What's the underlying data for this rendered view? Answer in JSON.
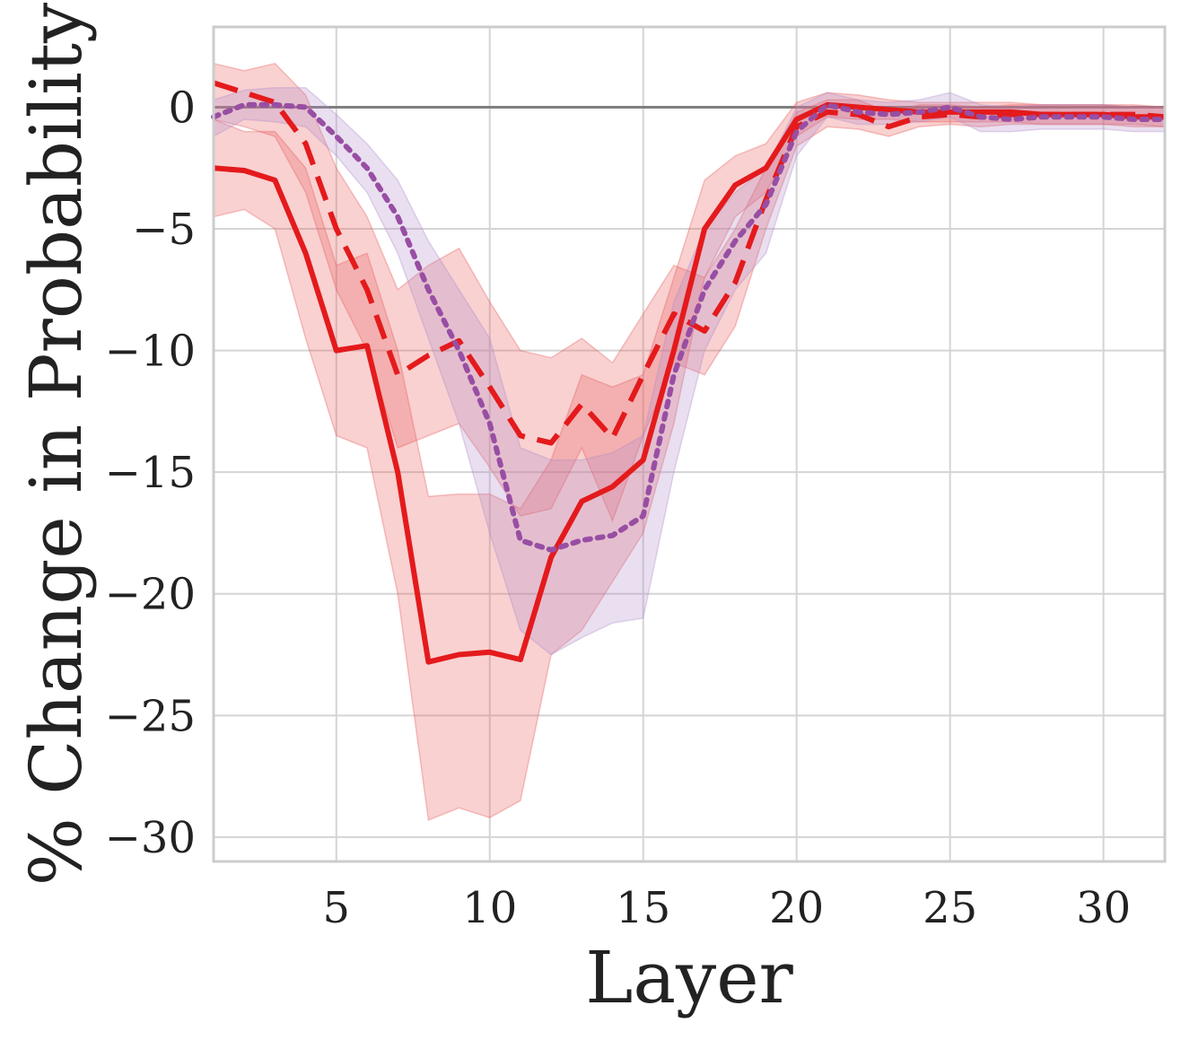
{
  "chart_data": {
    "type": "line",
    "title": "",
    "xlabel": "Layer",
    "ylabel": "% Change in Probability",
    "xlim": [
      1,
      32
    ],
    "ylim": [
      -31,
      3.3
    ],
    "xticks": [
      5,
      10,
      15,
      20,
      25,
      30
    ],
    "yticks": [
      0,
      -5,
      -10,
      -15,
      -20,
      -25,
      -30
    ],
    "xtick_labels": [
      "5",
      "10",
      "15",
      "20",
      "25",
      "30"
    ],
    "ytick_labels": [
      "0",
      "−5",
      "−10",
      "−15",
      "−20",
      "−25",
      "−30"
    ],
    "grid": true,
    "reference_line": 0,
    "colors": {
      "grid": "#d4d4d4",
      "frame": "#cccccc",
      "reference": "#7f7f7f",
      "red": "#e41a1c",
      "purple": "#984ea3",
      "band_red": "#e8585a",
      "band_purple": "#b08cc9",
      "text": "#222222"
    },
    "series": [
      {
        "style": "solid",
        "color": "#e41a1c",
        "band_color": "#e8585a",
        "x": [
          1,
          2,
          3,
          4,
          5,
          6,
          7,
          8,
          9,
          10,
          11,
          12,
          13,
          14,
          15,
          16,
          17,
          18,
          19,
          20,
          21,
          22,
          23,
          24,
          25,
          26,
          27,
          28,
          29,
          30,
          31,
          32
        ],
        "y": [
          -2.5,
          -2.6,
          -3.0,
          -6.0,
          -10.0,
          -9.8,
          -15.0,
          -22.8,
          -22.5,
          -22.4,
          -22.7,
          -18.5,
          -16.2,
          -15.6,
          -14.5,
          -10.0,
          -5.0,
          -3.2,
          -2.5,
          -0.5,
          0.1,
          0.0,
          -0.1,
          -0.2,
          -0.2,
          -0.2,
          -0.2,
          -0.3,
          -0.3,
          -0.3,
          -0.4,
          -0.4
        ],
        "lower": [
          -4.5,
          -4.2,
          -5.0,
          -9.5,
          -13.5,
          -14.0,
          -20.0,
          -29.3,
          -28.8,
          -29.2,
          -28.5,
          -22.5,
          -21.5,
          -19.5,
          -17.5,
          -13.0,
          -7.0,
          -4.5,
          -3.5,
          -1.2,
          -0.4,
          -0.5,
          -0.5,
          -0.6,
          -0.6,
          -0.6,
          -0.6,
          -0.7,
          -0.7,
          -0.7,
          -0.8,
          -0.8
        ],
        "upper": [
          -0.5,
          -1.0,
          -1.0,
          -2.5,
          -6.5,
          -6.0,
          -10.0,
          -16.0,
          -15.9,
          -15.9,
          -16.5,
          -14.5,
          -11.0,
          -11.5,
          -11.0,
          -7.0,
          -3.0,
          -2.0,
          -1.5,
          0.2,
          0.6,
          0.5,
          0.3,
          0.2,
          0.2,
          0.2,
          0.2,
          0.1,
          0.1,
          0.1,
          0.0,
          0.0
        ]
      },
      {
        "style": "dashed",
        "color": "#e41a1c",
        "band_color": "#e8585a",
        "x": [
          1,
          2,
          3,
          4,
          5,
          6,
          7,
          8,
          9,
          10,
          11,
          12,
          13,
          14,
          15,
          16,
          17,
          18,
          19,
          20,
          21,
          22,
          23,
          24,
          25,
          26,
          27,
          28,
          29,
          30,
          31,
          32
        ],
        "y": [
          1.0,
          0.6,
          0.2,
          -1.5,
          -5.0,
          -7.5,
          -11.0,
          -10.2,
          -9.6,
          -11.5,
          -13.5,
          -13.8,
          -12.2,
          -13.6,
          -11.0,
          -8.5,
          -9.2,
          -7.2,
          -3.8,
          -0.8,
          -0.2,
          -0.3,
          -0.8,
          -0.4,
          -0.3,
          -0.4,
          -0.3,
          -0.3,
          -0.3,
          -0.3,
          -0.3,
          -0.4
        ],
        "lower": [
          -0.5,
          -0.8,
          -1.2,
          -3.5,
          -7.5,
          -10.0,
          -14.0,
          -13.5,
          -13.0,
          -14.8,
          -16.8,
          -16.5,
          -14.0,
          -17.0,
          -13.5,
          -10.5,
          -11.0,
          -9.0,
          -5.0,
          -1.6,
          -0.8,
          -0.9,
          -1.2,
          -0.8,
          -0.7,
          -0.8,
          -0.7,
          -0.7,
          -0.7,
          -0.7,
          -0.7,
          -0.8
        ],
        "upper": [
          1.8,
          1.5,
          1.8,
          0.5,
          -2.5,
          -4.5,
          -7.5,
          -6.5,
          -5.8,
          -8.0,
          -10.0,
          -10.3,
          -9.5,
          -10.5,
          -8.5,
          -6.5,
          -7.0,
          -5.0,
          -2.5,
          -0.2,
          0.3,
          0.3,
          -0.2,
          0.1,
          0.1,
          0.0,
          0.1,
          0.1,
          0.1,
          0.1,
          0.1,
          0.0
        ]
      },
      {
        "style": "dotted",
        "color": "#984ea3",
        "band_color": "#b08cc9",
        "x": [
          1,
          2,
          3,
          4,
          5,
          6,
          7,
          8,
          9,
          10,
          11,
          12,
          13,
          14,
          15,
          16,
          17,
          18,
          19,
          20,
          21,
          22,
          23,
          24,
          25,
          26,
          27,
          28,
          29,
          30,
          31,
          32
        ],
        "y": [
          -0.4,
          0.1,
          0.1,
          0.0,
          -1.2,
          -2.5,
          -4.5,
          -7.5,
          -10.0,
          -13.0,
          -17.8,
          -18.2,
          -17.8,
          -17.6,
          -16.8,
          -11.0,
          -7.5,
          -5.5,
          -4.0,
          -1.0,
          0.1,
          -0.2,
          -0.3,
          -0.2,
          0.0,
          -0.4,
          -0.5,
          -0.4,
          -0.4,
          -0.4,
          -0.5,
          -0.5
        ],
        "lower": [
          -1.2,
          -0.5,
          -0.6,
          -0.8,
          -2.0,
          -3.5,
          -6.0,
          -9.5,
          -13.0,
          -17.5,
          -21.5,
          -22.5,
          -21.8,
          -21.2,
          -21.0,
          -15.0,
          -10.0,
          -7.5,
          -6.0,
          -2.0,
          -0.4,
          -0.7,
          -0.7,
          -0.6,
          -0.4,
          -1.0,
          -1.0,
          -0.9,
          -0.9,
          -0.9,
          -1.0,
          -1.0
        ],
        "upper": [
          0.3,
          0.7,
          0.8,
          0.8,
          -0.3,
          -1.5,
          -3.0,
          -5.5,
          -7.5,
          -9.5,
          -14.0,
          -14.5,
          -14.5,
          -14.2,
          -13.5,
          -8.0,
          -5.0,
          -3.5,
          -2.5,
          0.0,
          0.6,
          0.3,
          0.2,
          0.3,
          0.6,
          0.1,
          0.0,
          0.1,
          0.1,
          0.1,
          0.0,
          0.0
        ]
      }
    ]
  }
}
